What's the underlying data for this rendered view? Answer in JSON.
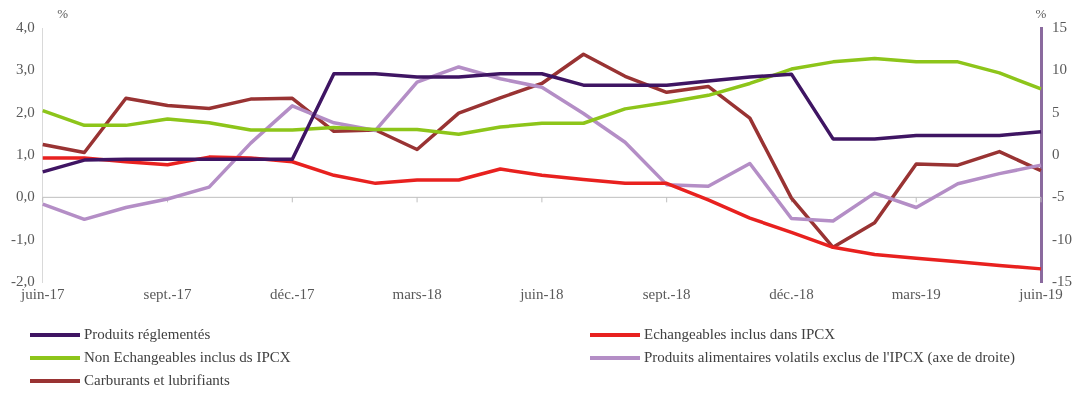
{
  "chart_data": {
    "type": "line",
    "categories": [
      "juin-17",
      null,
      null,
      "sept.-17",
      null,
      null,
      "déc.-17",
      null,
      null,
      "mars-18",
      null,
      null,
      "juin-18",
      null,
      null,
      "sept.-18",
      null,
      null,
      "déc.-18",
      null,
      null,
      "mars-19",
      null,
      null,
      "juin-19"
    ],
    "series": [
      {
        "name": "Produits réglementés",
        "color": "#3f1563",
        "values": [
          0.6,
          0.88,
          0.9,
          0.9,
          0.9,
          0.9,
          0.9,
          2.92,
          2.92,
          2.84,
          2.84,
          2.92,
          2.92,
          2.65,
          2.65,
          2.65,
          2.75,
          2.84,
          2.91,
          1.38,
          1.38,
          1.46,
          1.46,
          1.46,
          1.55
        ]
      },
      {
        "name": "Echangeables inclus dans IPCX",
        "color": "#e8211f",
        "values": [
          0.93,
          0.93,
          0.84,
          0.77,
          0.95,
          0.93,
          0.84,
          0.52,
          0.33,
          0.41,
          0.41,
          0.67,
          0.52,
          0.42,
          0.33,
          0.33,
          -0.06,
          -0.49,
          -0.83,
          -1.18,
          -1.35,
          -1.44,
          -1.52,
          -1.61,
          -1.69
        ]
      },
      {
        "name": "Non Echangeables inclus ds IPCX",
        "color": "#8dc51a",
        "values": [
          2.05,
          1.7,
          1.7,
          1.85,
          1.76,
          1.59,
          1.59,
          1.65,
          1.6,
          1.6,
          1.49,
          1.66,
          1.75,
          1.75,
          2.09,
          2.24,
          2.41,
          2.69,
          3.03,
          3.2,
          3.28,
          3.2,
          3.2,
          2.94,
          2.56
        ]
      },
      {
        "name": "Produits alimentaires volatils exclus de l'IPCX (axe de droite)",
        "color": "#b48ec6",
        "axis": "y2",
        "values": [
          -5.8,
          -7.6,
          -6.2,
          -5.2,
          -3.8,
          1.4,
          5.8,
          3.8,
          2.9,
          8.6,
          10.4,
          9.0,
          8.0,
          4.9,
          1.5,
          -3.5,
          -3.7,
          -1.0,
          -7.5,
          -7.8,
          -4.5,
          -6.2,
          -3.4,
          -2.2,
          -1.2
        ]
      },
      {
        "name": "Carburants et lubrifiants",
        "color": "#993333",
        "values": [
          1.25,
          1.06,
          2.34,
          2.17,
          2.1,
          2.32,
          2.34,
          1.56,
          1.59,
          1.13,
          1.99,
          2.35,
          2.69,
          3.38,
          2.86,
          2.48,
          2.62,
          1.87,
          -0.02,
          -1.18,
          -0.6,
          0.79,
          0.76,
          1.08,
          0.63
        ]
      }
    ],
    "ylabel": "%",
    "y2label": "%",
    "ylim": [
      -2,
      4
    ],
    "yticks": [
      {
        "value": -2,
        "label": "-2,0"
      },
      {
        "value": -1,
        "label": "-1,0"
      },
      {
        "value": 0,
        "label": "0,0"
      },
      {
        "value": 1,
        "label": "1,0"
      },
      {
        "value": 2,
        "label": "2,0"
      },
      {
        "value": 3,
        "label": "3,0"
      },
      {
        "value": 4,
        "label": "4,0"
      }
    ],
    "y2lim": [
      -15,
      15
    ],
    "y2ticks": [
      -15,
      -10,
      -5,
      0,
      5,
      10,
      15
    ],
    "ref_lines": [
      {
        "axis": "y",
        "value": 0,
        "color": "#bfbfbf"
      }
    ],
    "grid": false,
    "legend": "bottom",
    "marker": "none",
    "line_style": "solid"
  }
}
